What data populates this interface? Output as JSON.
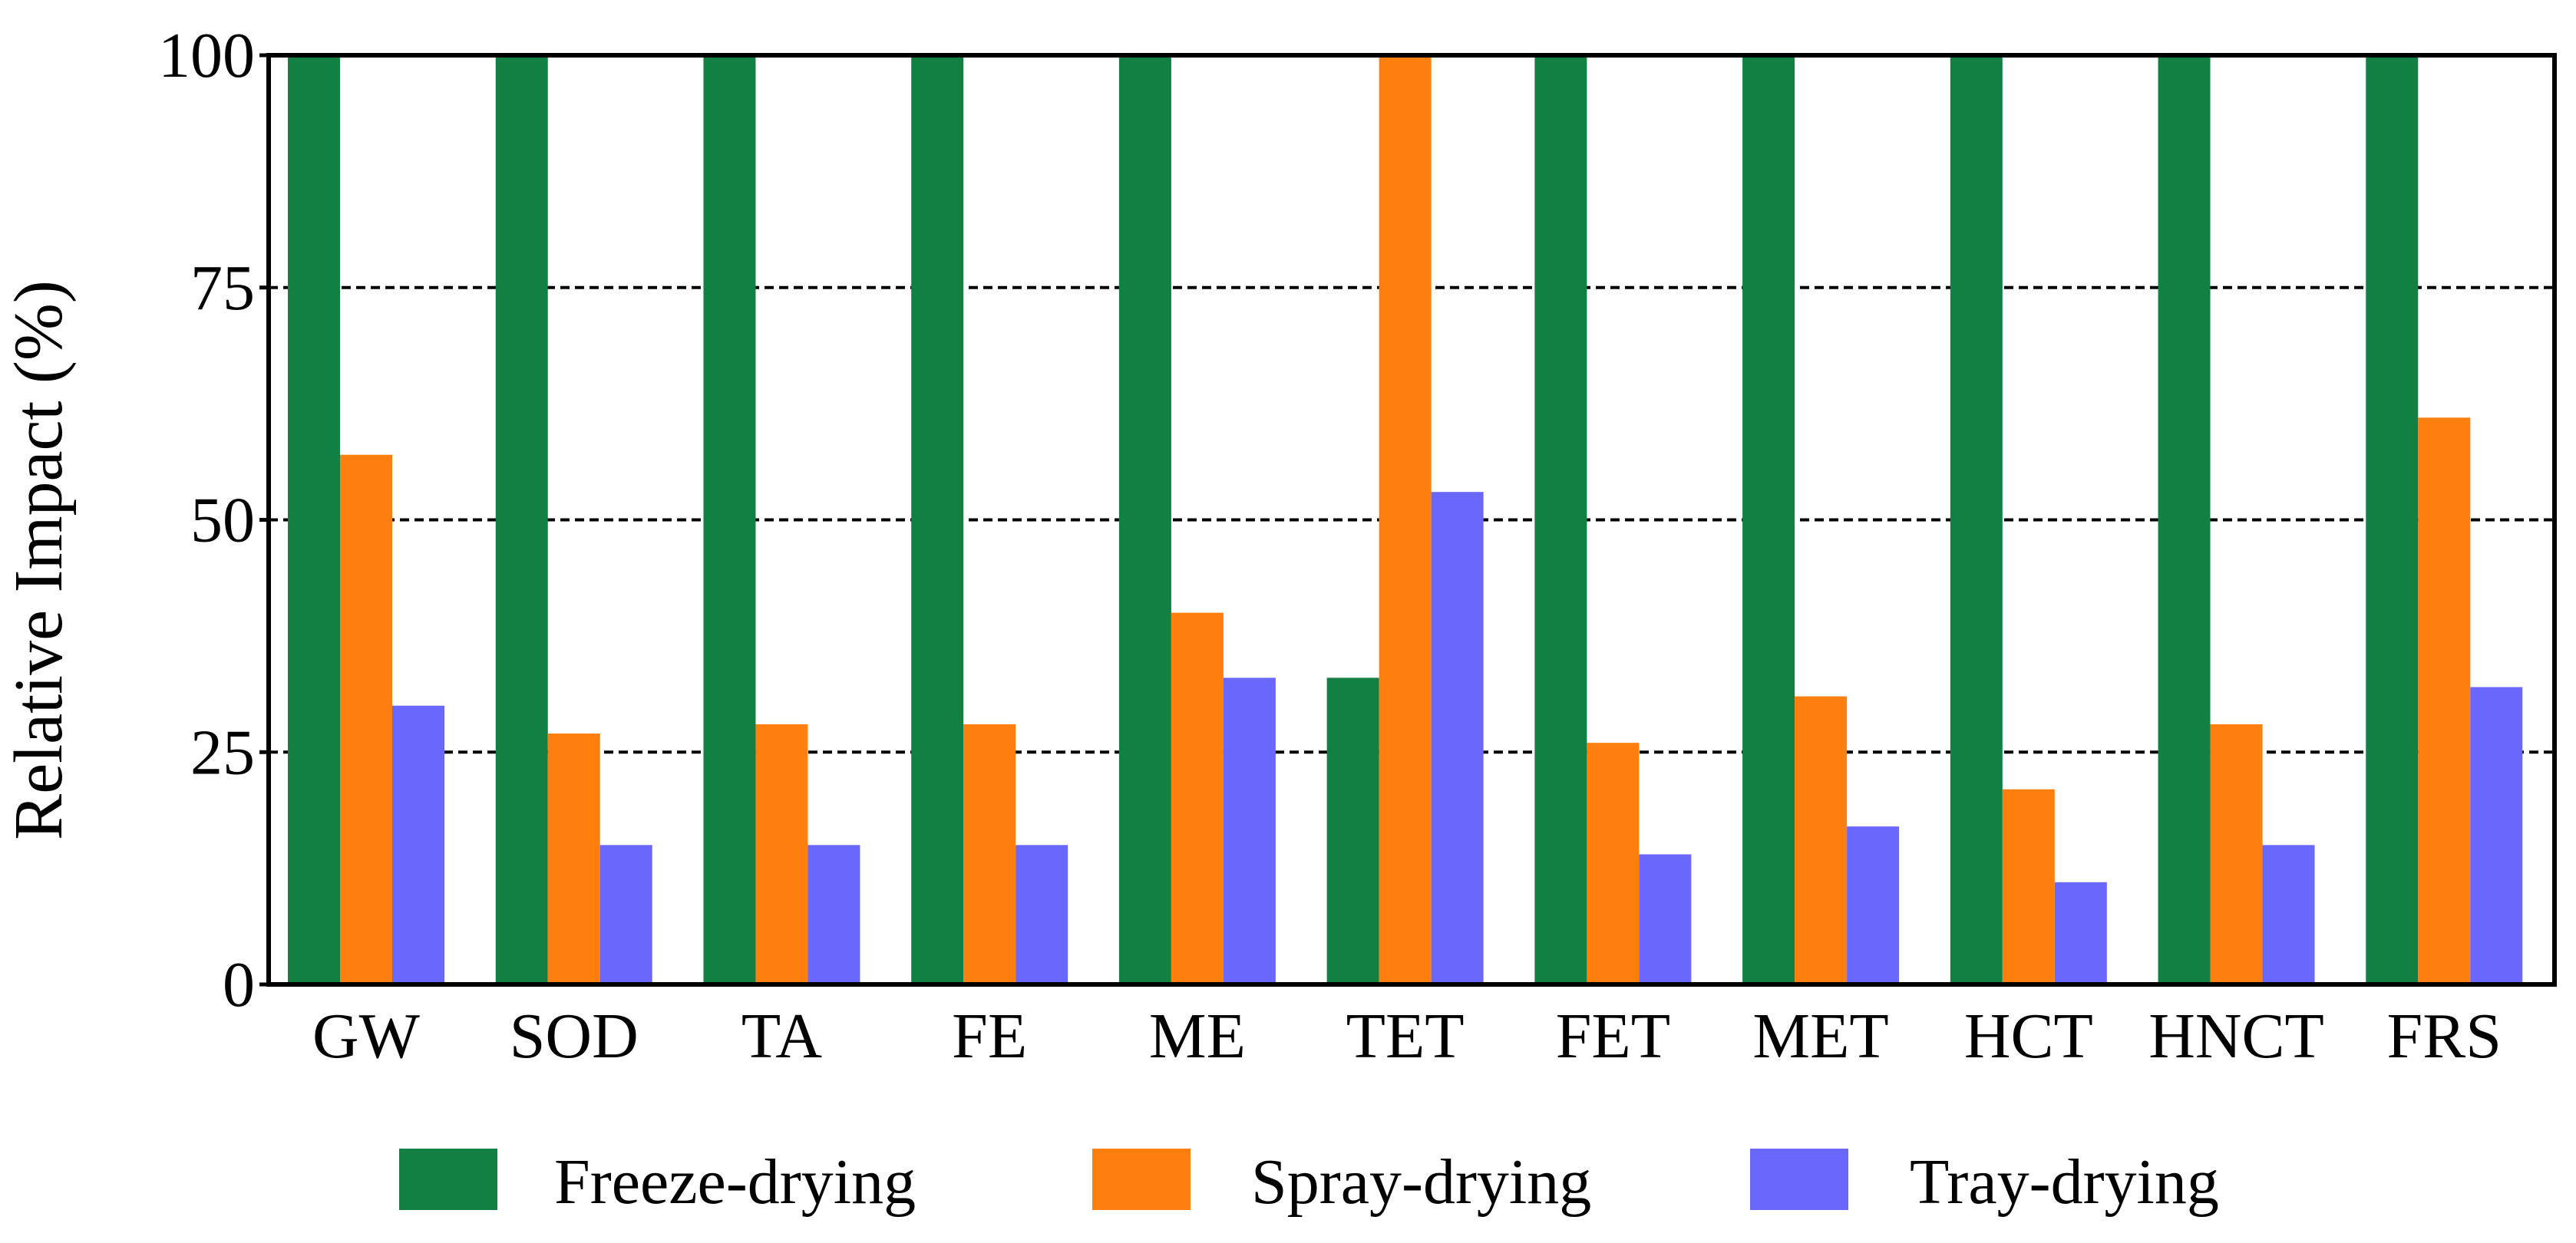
{
  "chart_data": {
    "type": "bar",
    "title": "",
    "xlabel": "",
    "ylabel": "Relative Impact (%)",
    "ylim": [
      0,
      100
    ],
    "yticks": [
      0,
      25,
      50,
      75,
      100
    ],
    "ytick_labels": [
      "0",
      "25",
      "50",
      "75",
      "100"
    ],
    "grid": "horizontal dashed at 25, 50, 75",
    "legend_position": "bottom",
    "categories": [
      "GW",
      "SOD",
      "TA",
      "FE",
      "ME",
      "TET",
      "FET",
      "MET",
      "HCT",
      "HNCT",
      "FRS"
    ],
    "series": [
      {
        "name": "Freeze-drying",
        "color": "#138043",
        "values": [
          100,
          100,
          100,
          100,
          100,
          33,
          100,
          100,
          100,
          100,
          100
        ]
      },
      {
        "name": "Spray-drying",
        "color": "#ff7f0e",
        "values": [
          57,
          27,
          28,
          28,
          40,
          100,
          26,
          31,
          21,
          28,
          61
        ]
      },
      {
        "name": "Tray-drying",
        "color": "#6a67fd",
        "values": [
          30,
          15,
          15,
          15,
          33,
          53,
          14,
          17,
          11,
          15,
          32
        ]
      }
    ]
  }
}
